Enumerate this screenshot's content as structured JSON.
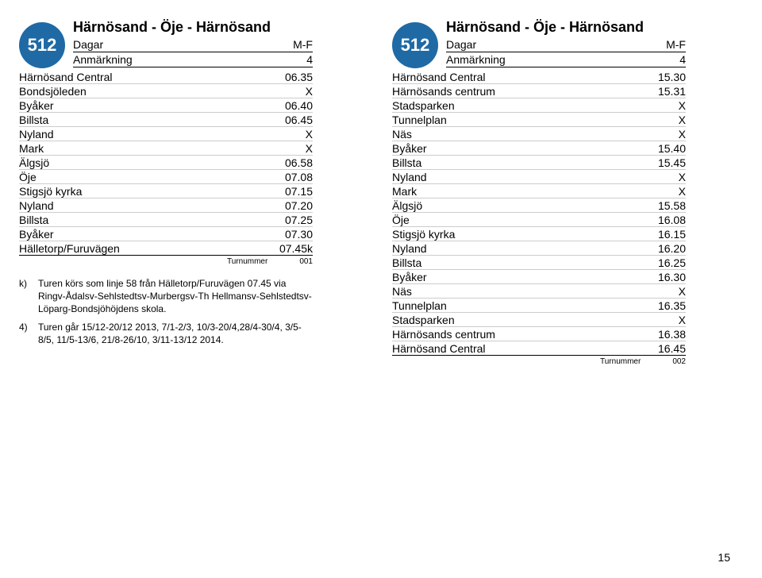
{
  "page_number": "15",
  "left": {
    "route_number": "512",
    "circle_bg": "#1f6aa5",
    "circle_fg": "#ffffff",
    "title": "Härnösand - Öje - Härnösand",
    "days_label": "Dagar",
    "days_value": "M-F",
    "note_label": "Anmärkning",
    "note_value": "4",
    "stops": [
      {
        "name": "Härnösand Central",
        "time": "06.35"
      },
      {
        "name": "Bondsjöleden",
        "time": "X"
      },
      {
        "name": "Byåker",
        "time": "06.40"
      },
      {
        "name": "Billsta",
        "time": "06.45"
      },
      {
        "name": "Nyland",
        "time": "X"
      },
      {
        "name": "Mark",
        "time": "X"
      },
      {
        "name": "Älgsjö",
        "time": "06.58"
      },
      {
        "name": "Öje",
        "time": "07.08"
      },
      {
        "name": "Stigsjö kyrka",
        "time": "07.15"
      },
      {
        "name": "Nyland",
        "time": "07.20"
      },
      {
        "name": "Billsta",
        "time": "07.25"
      },
      {
        "name": "Byåker",
        "time": "07.30"
      },
      {
        "name": "Hälletorp/Furuvägen",
        "time": "07.45k"
      }
    ],
    "tur_label": "Turnummer",
    "tur_value": "001",
    "footnotes": [
      {
        "key": "k)",
        "text": "Turen körs som linje 58 från Hälletorp/Furuvägen 07.45 via Ringv-Ådalsv-Sehlstedtsv-Murbergsv-Th Hellmansv-Sehlstedtsv-Löparg-Bondsjöhöjdens skola."
      },
      {
        "key": "4)",
        "text": "Turen går 15/12-20/12 2013, 7/1-2/3, 10/3-20/4,28/4-30/4, 3/5-8/5, 11/5-13/6, 21/8-26/10, 3/11-13/12 2014."
      }
    ]
  },
  "right": {
    "route_number": "512",
    "circle_bg": "#1f6aa5",
    "circle_fg": "#ffffff",
    "title": "Härnösand - Öje - Härnösand",
    "days_label": "Dagar",
    "days_value": "M-F",
    "note_label": "Anmärkning",
    "note_value": "4",
    "stops": [
      {
        "name": "Härnösand Central",
        "time": "15.30"
      },
      {
        "name": "Härnösands centrum",
        "time": "15.31"
      },
      {
        "name": "Stadsparken",
        "time": "X"
      },
      {
        "name": "Tunnelplan",
        "time": "X"
      },
      {
        "name": "Näs",
        "time": "X"
      },
      {
        "name": "Byåker",
        "time": "15.40"
      },
      {
        "name": "Billsta",
        "time": "15.45"
      },
      {
        "name": "Nyland",
        "time": "X"
      },
      {
        "name": "Mark",
        "time": "X"
      },
      {
        "name": "Älgsjö",
        "time": "15.58"
      },
      {
        "name": "Öje",
        "time": "16.08"
      },
      {
        "name": "Stigsjö kyrka",
        "time": "16.15"
      },
      {
        "name": "Nyland",
        "time": "16.20"
      },
      {
        "name": "Billsta",
        "time": "16.25"
      },
      {
        "name": "Byåker",
        "time": "16.30"
      },
      {
        "name": "Näs",
        "time": "X"
      },
      {
        "name": "Tunnelplan",
        "time": "16.35"
      },
      {
        "name": "Stadsparken",
        "time": "X"
      },
      {
        "name": "Härnösands centrum",
        "time": "16.38"
      },
      {
        "name": "Härnösand Central",
        "time": "16.45"
      }
    ],
    "tur_label": "Turnummer",
    "tur_value": "002"
  }
}
